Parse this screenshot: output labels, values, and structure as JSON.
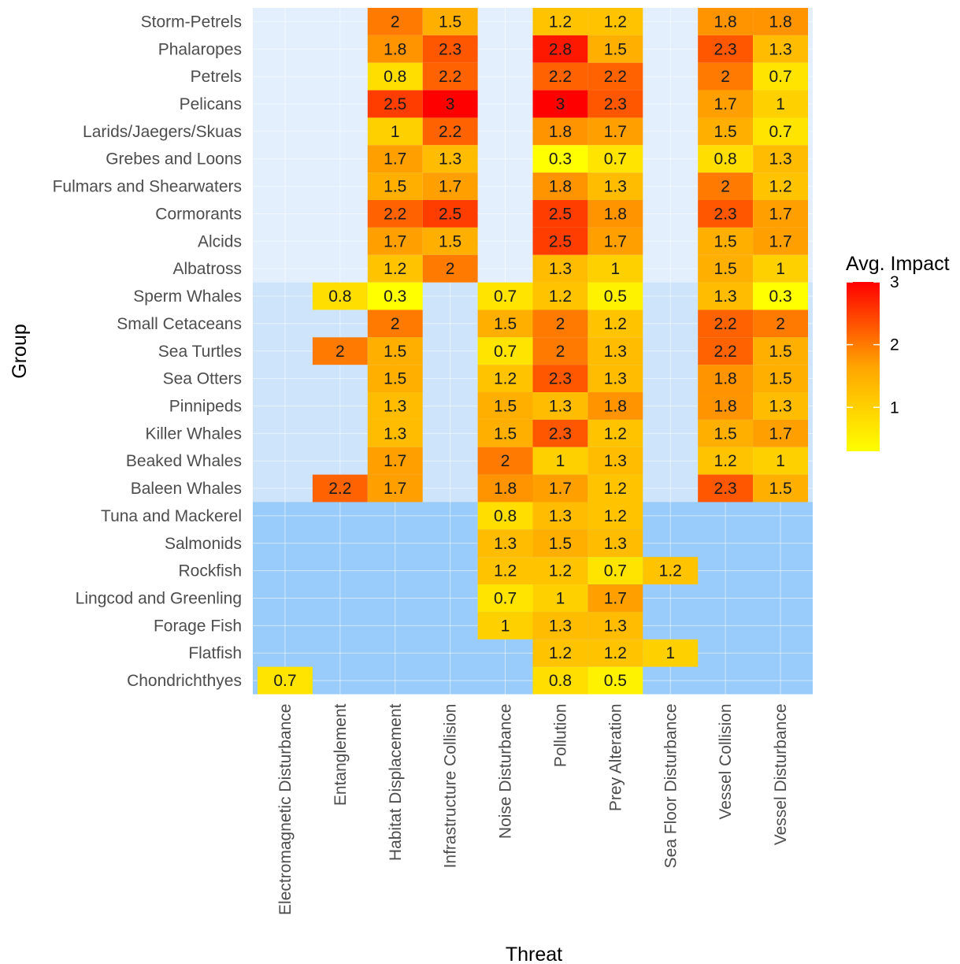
{
  "chart_data": {
    "type": "heatmap",
    "xlabel": "Threat",
    "ylabel": "Group",
    "x": [
      "Electromagnetic Disturbance",
      "Entanglement",
      "Habitat Displacement",
      "Infrastructure Collision",
      "Noise Disturbance",
      "Pollution",
      "Prey Alteration",
      "Sea Floor Disturbance",
      "Vessel Collision",
      "Vessel Disturbance"
    ],
    "y": [
      "Storm-Petrels",
      "Phalaropes",
      "Petrels",
      "Pelicans",
      "Larids/Jaegers/Skuas",
      "Grebes and Loons",
      "Fulmars and Shearwaters",
      "Cormorants",
      "Alcids",
      "Albatross",
      "Sperm Whales",
      "Small Cetaceans",
      "Sea Turtles",
      "Sea Otters",
      "Pinnipeds",
      "Killer Whales",
      "Beaked Whales",
      "Baleen Whales",
      "Tuna and Mackerel",
      "Salmonids",
      "Rockfish",
      "Lingcod and Greenling",
      "Forage Fish",
      "Flatfish",
      "Chondrichthyes"
    ],
    "values": [
      [
        null,
        null,
        2,
        1.5,
        null,
        1.2,
        1.2,
        null,
        1.8,
        1.8
      ],
      [
        null,
        null,
        1.8,
        2.3,
        null,
        2.8,
        1.5,
        null,
        2.3,
        1.3
      ],
      [
        null,
        null,
        0.8,
        2.2,
        null,
        2.2,
        2.2,
        null,
        2,
        0.7
      ],
      [
        null,
        null,
        2.5,
        3,
        null,
        3,
        2.3,
        null,
        1.7,
        1
      ],
      [
        null,
        null,
        1,
        2.2,
        null,
        1.8,
        1.7,
        null,
        1.5,
        0.7
      ],
      [
        null,
        null,
        1.7,
        1.3,
        null,
        0.3,
        0.7,
        null,
        0.8,
        1.3
      ],
      [
        null,
        null,
        1.5,
        1.7,
        null,
        1.8,
        1.3,
        null,
        2,
        1.2
      ],
      [
        null,
        null,
        2.2,
        2.5,
        null,
        2.5,
        1.8,
        null,
        2.3,
        1.7
      ],
      [
        null,
        null,
        1.7,
        1.5,
        null,
        2.5,
        1.7,
        null,
        1.5,
        1.7
      ],
      [
        null,
        null,
        1.2,
        2,
        null,
        1.3,
        1,
        null,
        1.5,
        1
      ],
      [
        null,
        0.8,
        0.3,
        null,
        0.7,
        1.2,
        0.5,
        null,
        1.3,
        0.3
      ],
      [
        null,
        null,
        2,
        null,
        1.5,
        2,
        1.2,
        null,
        2.2,
        2
      ],
      [
        null,
        2,
        1.5,
        null,
        0.7,
        2,
        1.3,
        null,
        2.2,
        1.5
      ],
      [
        null,
        null,
        1.5,
        null,
        1.2,
        2.3,
        1.3,
        null,
        1.8,
        1.5
      ],
      [
        null,
        null,
        1.3,
        null,
        1.5,
        1.3,
        1.8,
        null,
        1.8,
        1.3
      ],
      [
        null,
        null,
        1.3,
        null,
        1.5,
        2.3,
        1.2,
        null,
        1.5,
        1.7
      ],
      [
        null,
        null,
        1.7,
        null,
        2,
        1,
        1.3,
        null,
        1.2,
        1
      ],
      [
        null,
        2.2,
        1.7,
        null,
        1.8,
        1.7,
        1.2,
        null,
        2.3,
        1.5
      ],
      [
        null,
        null,
        null,
        null,
        0.8,
        1.3,
        1.2,
        null,
        null,
        null
      ],
      [
        null,
        null,
        null,
        null,
        1.3,
        1.5,
        1.3,
        null,
        null,
        null
      ],
      [
        null,
        null,
        null,
        null,
        1.2,
        1.2,
        0.7,
        1.2,
        null,
        null
      ],
      [
        null,
        null,
        null,
        null,
        0.7,
        1,
        1.7,
        null,
        null,
        null
      ],
      [
        null,
        null,
        null,
        null,
        1,
        1.3,
        1.3,
        null,
        null,
        null
      ],
      [
        null,
        null,
        null,
        null,
        null,
        1.2,
        1.2,
        1,
        null,
        null
      ],
      [
        0.7,
        null,
        null,
        null,
        null,
        0.8,
        0.5,
        null,
        null,
        null
      ]
    ],
    "band_groups": [
      {
        "rows": 10,
        "color": "#e3effd"
      },
      {
        "rows": 8,
        "color": "#cde4fb"
      },
      {
        "rows": 7,
        "color": "#99cbfb"
      }
    ],
    "legend": {
      "title": "Avg. Impact",
      "ticks": [
        1,
        2,
        3
      ],
      "range": [
        0.3,
        3
      ],
      "colors": [
        "#ffff00",
        "#ffa500",
        "#ff0000"
      ],
      "placement": "right"
    },
    "grid": true
  }
}
